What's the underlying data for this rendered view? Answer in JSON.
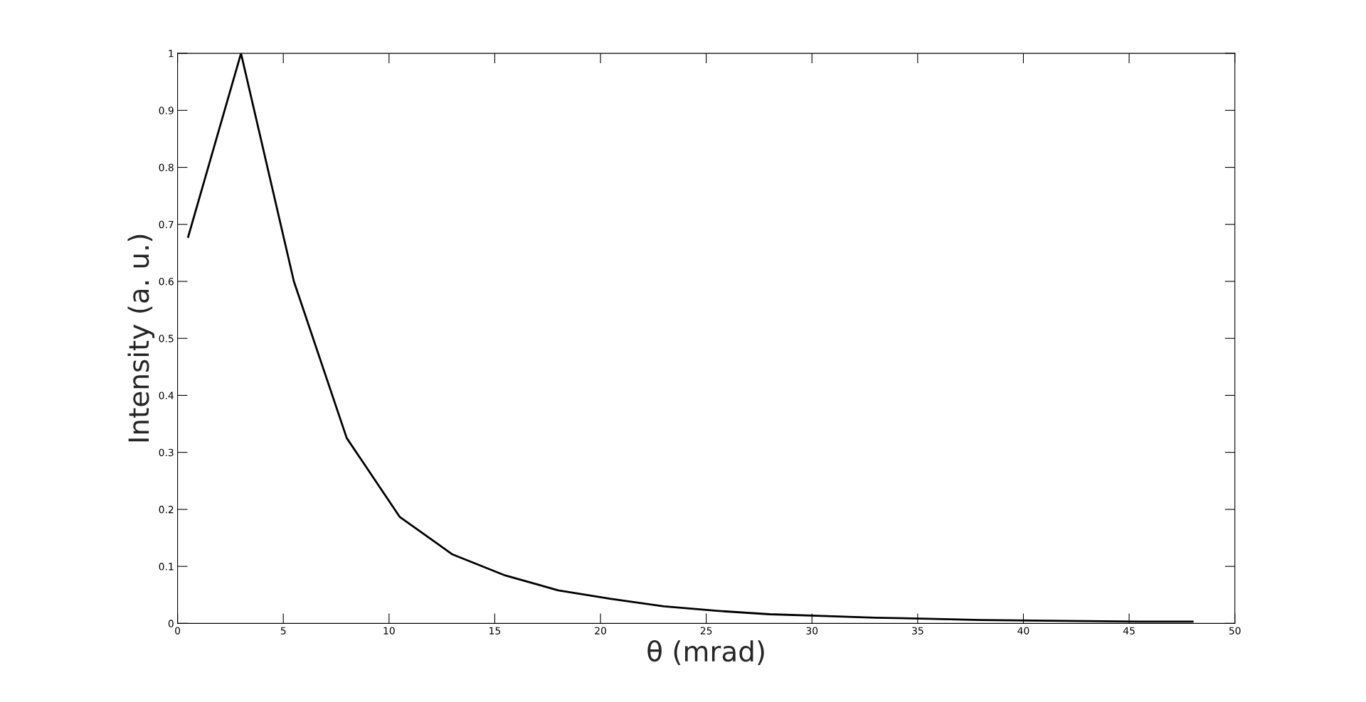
{
  "chart_data": {
    "type": "line",
    "xlabel": "θ (mrad)",
    "ylabel": "Intensity (a. u.)",
    "x": [
      0.5,
      3,
      5.5,
      8,
      10.5,
      13,
      15.5,
      18,
      20.5,
      23,
      25.5,
      28,
      30.5,
      33,
      35.5,
      38,
      40.5,
      43,
      45.5,
      48
    ],
    "series": [
      {
        "color": "#000000",
        "values": [
          0.678,
          1,
          0.6,
          0.325,
          0.187,
          0.121,
          0.084,
          0.058,
          0.043,
          0.03,
          0.022,
          0.016,
          0.013,
          0.01,
          0.008,
          0.006,
          0.005,
          0.004,
          0.003,
          0.003
        ]
      }
    ],
    "xlim": [
      0,
      50
    ],
    "xticks": [
      0,
      5,
      10,
      15,
      20,
      25,
      30,
      35,
      40,
      45,
      50
    ],
    "ylim": [
      0,
      1
    ],
    "yticks": [
      0,
      0.1,
      0.2,
      0.3,
      0.4,
      0.5,
      0.6,
      0.7,
      0.8,
      0.9,
      1
    ],
    "grid": false,
    "legend": false,
    "marker": "none",
    "line_style": "solid"
  }
}
